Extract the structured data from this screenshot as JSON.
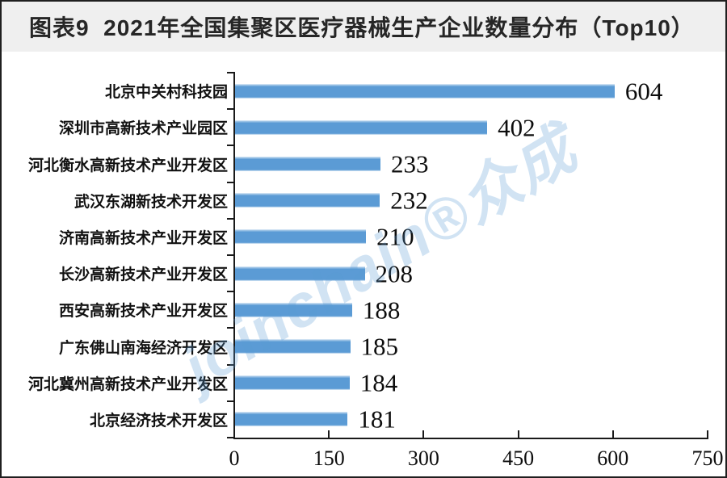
{
  "title": "图表9  2021年全国集聚区医疗器械生产企业数量分布（Top10）",
  "watermark": {
    "text": "joinchain®众成"
  },
  "colors": {
    "bar": "#5B9BD5",
    "axis": "#1A1A1A",
    "title_bg": "#EFEFEF",
    "text": "#111111",
    "watermark": "rgba(91,155,213,0.28)"
  },
  "chart_data": {
    "type": "bar",
    "orientation": "horizontal",
    "title": "图表9  2021年全国集聚区医疗器械生产企业数量分布（Top10）",
    "categories": [
      "北京中关村科技园",
      "深圳市高新技术产业园区",
      "河北衡水高新技术产业开发区",
      "武汉东湖新技术开发区",
      "济南高新技术产业开发区",
      "长沙高新技术产业开发区",
      "西安高新技术产业开发区",
      "广东佛山南海经济开发区",
      "河北冀州高新技术产业开发区",
      "北京经济技术开发区"
    ],
    "values": [
      604,
      402,
      233,
      232,
      210,
      208,
      188,
      185,
      184,
      181
    ],
    "xlabel": "",
    "ylabel": "",
    "xlim": [
      0,
      750
    ],
    "x_ticks": [
      0,
      150,
      300,
      450,
      600,
      750
    ],
    "grid": false,
    "legend_position": "none"
  }
}
